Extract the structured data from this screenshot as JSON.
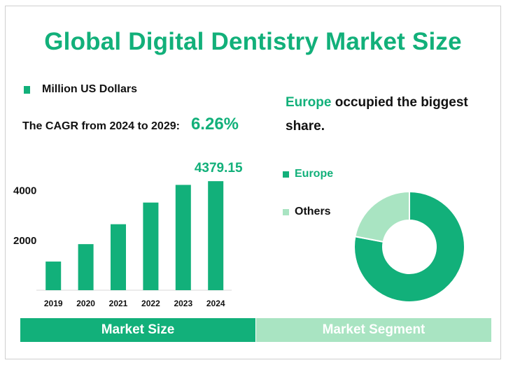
{
  "title": "Global Digital Dentistry Market Size",
  "legend": {
    "label": "Million US Dollars",
    "color": "#12b07a"
  },
  "cagr": {
    "label": "The CAGR from 2024 to 2029:",
    "value": "6.26%"
  },
  "segment": {
    "headline_highlight": "Europe",
    "headline_rest": " occupied the biggest share."
  },
  "tabs": {
    "left": "Market Size",
    "right": "Market Segment"
  },
  "chart_data": [
    {
      "type": "bar",
      "categories": [
        "2019",
        "2020",
        "2021",
        "2022",
        "2023",
        "2024"
      ],
      "values": [
        1150,
        1850,
        2650,
        3520,
        4230,
        4379.15
      ],
      "value_labels": [
        "",
        "",
        "",
        "",
        "",
        "4379.15"
      ],
      "ylabel": "",
      "yticks": [
        2000,
        4000
      ],
      "ylim": [
        0,
        5000
      ],
      "color": "#12b07a",
      "grid": false
    },
    {
      "type": "pie",
      "donut": true,
      "labels": [
        "Europe",
        "Others"
      ],
      "values": [
        78,
        22
      ],
      "colors": [
        "#12b07a",
        "#a9e4c2"
      ],
      "legend": "left"
    }
  ]
}
